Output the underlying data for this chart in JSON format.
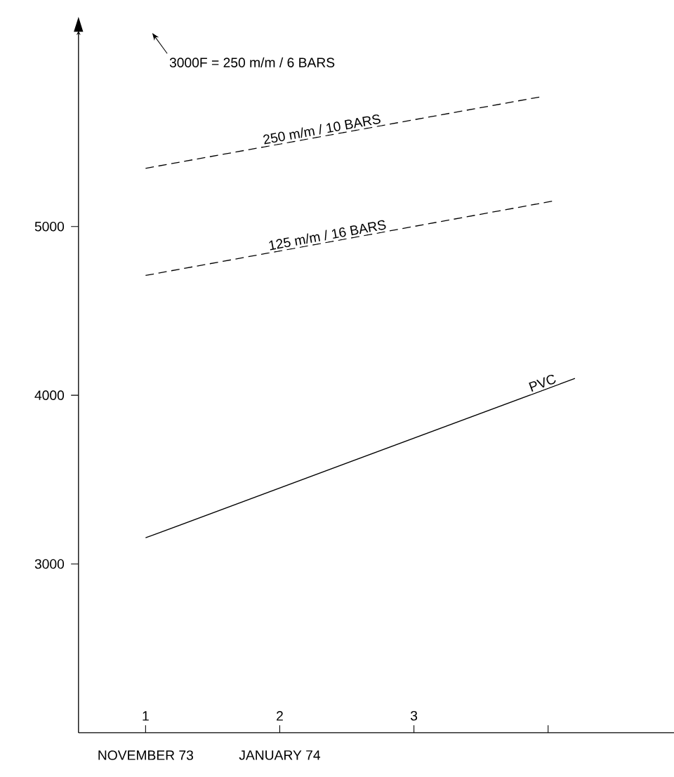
{
  "chart_data": {
    "type": "line",
    "xlim": [
      0.5,
      5.0
    ],
    "ylim": [
      2000,
      6160
    ],
    "xticks": [
      1,
      2,
      3,
      {
        "value": 4,
        "label": null
      }
    ],
    "yticks": [
      3000,
      4000,
      5000
    ],
    "series": [
      {
        "name": "250 m/m / 10 BARS",
        "color": "#000000",
        "line_style": "dashed",
        "x": [
          1,
          3.94
        ],
        "values": [
          5345,
          5768
        ]
      },
      {
        "name": "125 m/m / 16 BARS",
        "color": "#000000",
        "line_style": "dashed",
        "x": [
          1,
          4.03
        ],
        "values": [
          4710,
          5150
        ]
      },
      {
        "name": "PVC",
        "color": "#000000",
        "line_style": "solid",
        "x": [
          1,
          4.2
        ],
        "values": [
          3155,
          4100
        ]
      }
    ],
    "annotations": [
      "3000F = 250 m/m / 6 BARS",
      "NOVEMBER 73",
      "JANUARY 74"
    ],
    "grid": false,
    "legend": false,
    "marker": "none"
  }
}
